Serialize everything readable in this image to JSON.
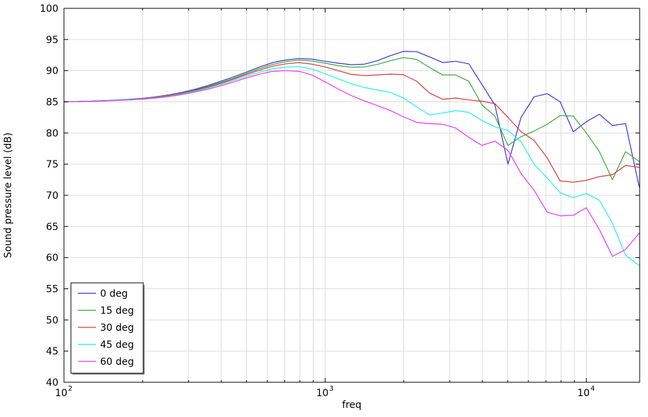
{
  "chart_data": {
    "type": "line",
    "title": "",
    "xlabel": "freq",
    "ylabel": "Sound pressure level (dB)",
    "xscale": "log",
    "xlim": [
      100,
      16000
    ],
    "ylim": [
      40,
      100
    ],
    "grid": true,
    "legend_position": "bottom-left",
    "x_ticks": [
      {
        "value": 100,
        "base": "10",
        "exp": "2"
      },
      {
        "value": 1000,
        "base": "10",
        "exp": "3"
      },
      {
        "value": 10000,
        "base": "10",
        "exp": "4"
      }
    ],
    "y_ticks": [
      "40",
      "45",
      "50",
      "55",
      "60",
      "65",
      "70",
      "75",
      "80",
      "85",
      "90",
      "95",
      "100"
    ],
    "x": [
      100,
      112,
      126,
      141,
      158,
      178,
      200,
      224,
      251,
      282,
      316,
      355,
      398,
      447,
      501,
      562,
      631,
      708,
      794,
      891,
      1000,
      1122,
      1259,
      1413,
      1585,
      1778,
      1995,
      2239,
      2512,
      2818,
      3162,
      3548,
      3981,
      4467,
      5012,
      5623,
      6310,
      7079,
      7943,
      8913,
      10000,
      11220,
      12589,
      14125,
      15849,
      16000
    ],
    "series": [
      {
        "name": "0 deg",
        "color": "#3333dd",
        "values": [
          85.0,
          85.05,
          85.1,
          85.18,
          85.28,
          85.4,
          85.58,
          85.8,
          86.1,
          86.5,
          87.0,
          87.6,
          88.3,
          89.0,
          89.8,
          90.6,
          91.3,
          91.7,
          91.95,
          91.85,
          91.5,
          91.2,
          90.95,
          91.05,
          91.6,
          92.4,
          93.1,
          93.05,
          92.2,
          91.3,
          91.5,
          91.1,
          87.8,
          84.5,
          75.0,
          82.5,
          85.8,
          86.3,
          85.0,
          80.2,
          81.8,
          83.0,
          81.2,
          81.5,
          71.8,
          71.2
        ]
      },
      {
        "name": "15 deg",
        "color": "#33aa33",
        "values": [
          85.0,
          85.05,
          85.1,
          85.18,
          85.27,
          85.38,
          85.55,
          85.75,
          86.05,
          86.42,
          86.9,
          87.45,
          88.1,
          88.8,
          89.6,
          90.35,
          91.0,
          91.45,
          91.7,
          91.55,
          91.2,
          90.8,
          90.55,
          90.6,
          91.0,
          91.6,
          92.1,
          91.8,
          90.5,
          89.3,
          89.3,
          88.3,
          84.5,
          82.7,
          78.0,
          79.4,
          80.3,
          81.4,
          82.8,
          82.7,
          80.0,
          77.0,
          72.5,
          77.0,
          75.5,
          75.3
        ]
      },
      {
        "name": "30 deg",
        "color": "#dd3333",
        "values": [
          85.0,
          85.04,
          85.09,
          85.16,
          85.25,
          85.36,
          85.52,
          85.72,
          86.0,
          86.35,
          86.8,
          87.33,
          87.95,
          88.65,
          89.4,
          90.1,
          90.72,
          91.1,
          91.3,
          91.05,
          90.6,
          90.0,
          89.4,
          89.2,
          89.3,
          89.45,
          89.35,
          88.3,
          86.4,
          85.4,
          85.6,
          85.3,
          85.1,
          84.7,
          82.5,
          80.2,
          78.8,
          76.0,
          72.3,
          72.1,
          72.4,
          73.0,
          73.3,
          74.8,
          74.5,
          74.5
        ]
      },
      {
        "name": "45 deg",
        "color": "#22eeee",
        "values": [
          85.0,
          85.04,
          85.08,
          85.15,
          85.23,
          85.33,
          85.48,
          85.66,
          85.92,
          86.25,
          86.68,
          87.18,
          87.77,
          88.43,
          89.12,
          89.77,
          90.3,
          90.58,
          90.65,
          90.25,
          89.5,
          88.7,
          87.9,
          87.3,
          86.9,
          86.5,
          85.6,
          84.2,
          82.9,
          83.2,
          83.6,
          83.3,
          82.0,
          81.0,
          80.4,
          78.6,
          75.0,
          72.8,
          70.4,
          69.6,
          70.3,
          69.2,
          65.5,
          60.4,
          58.8,
          58.7
        ]
      },
      {
        "name": "60 deg",
        "color": "#ee33ee",
        "values": [
          85.0,
          85.03,
          85.07,
          85.13,
          85.2,
          85.3,
          85.43,
          85.6,
          85.84,
          86.15,
          86.55,
          87.02,
          87.58,
          88.2,
          88.85,
          89.45,
          89.9,
          90.0,
          89.9,
          89.3,
          88.2,
          87.05,
          86.0,
          85.15,
          84.4,
          83.6,
          82.6,
          81.7,
          81.5,
          81.4,
          80.8,
          79.3,
          78.0,
          78.7,
          77.2,
          73.5,
          70.8,
          67.3,
          66.7,
          66.8,
          68.0,
          64.5,
          60.2,
          61.3,
          63.8,
          64.0
        ]
      }
    ]
  }
}
